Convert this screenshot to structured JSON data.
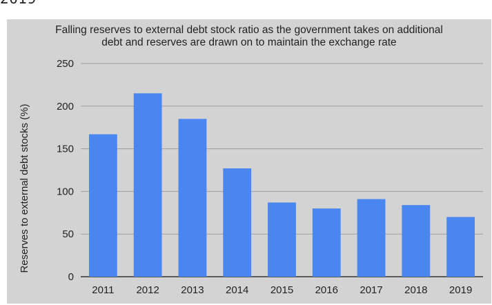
{
  "page": {
    "top_fragment": "2019"
  },
  "chart_data": {
    "type": "bar",
    "title_lines": [
      "Falling reserves to external debt stock ratio as the government takes on additional",
      "debt and reserves are drawn on to maintain the exchange rate"
    ],
    "xlabel": "",
    "ylabel": "Reserves to external debt stocks (%)",
    "categories": [
      "2011",
      "2012",
      "2013",
      "2014",
      "2015",
      "2016",
      "2017",
      "2018",
      "2019"
    ],
    "values": [
      167,
      215,
      185,
      127,
      87,
      80,
      91,
      84,
      70
    ],
    "ylim": [
      0,
      250
    ],
    "yticks": [
      0,
      50,
      100,
      150,
      200,
      250
    ],
    "grid": true,
    "legend": "none",
    "colors": {
      "bar": "#4a86f0",
      "panel_bg": "#d3d3d3",
      "grid": "#9e9e9e",
      "axis": "#333333"
    }
  }
}
